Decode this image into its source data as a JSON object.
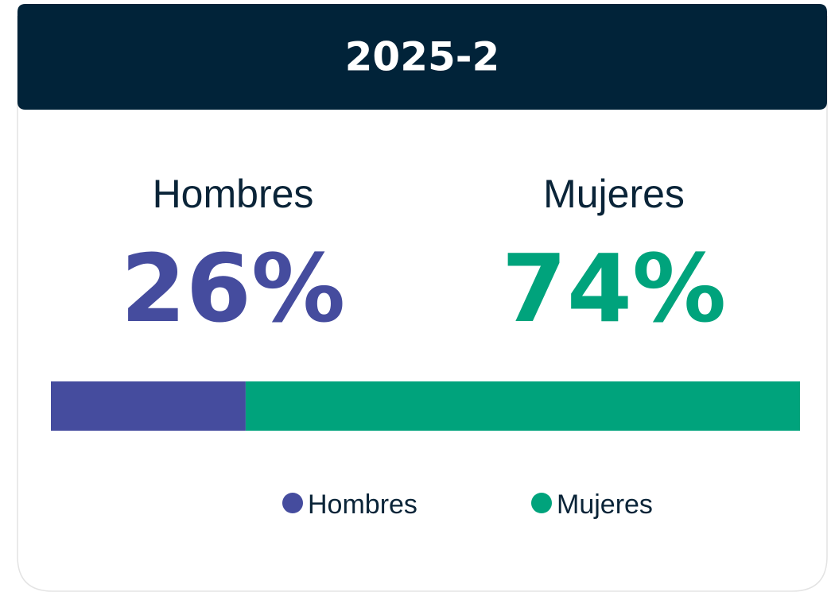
{
  "chart_data": {
    "type": "bar",
    "orientation": "horizontal",
    "stacked": true,
    "title": "2025-2",
    "categories": [
      null
    ],
    "xlim": [
      0,
      100
    ],
    "series": [
      {
        "name": "Hombres",
        "color": "#454c9e",
        "values": [
          26
        ],
        "value_labels": [
          "26%"
        ]
      },
      {
        "name": "Mujeres",
        "color": "#00a37c",
        "values": [
          74
        ],
        "value_labels": [
          "74%"
        ]
      }
    ],
    "legend": "bottom"
  }
}
